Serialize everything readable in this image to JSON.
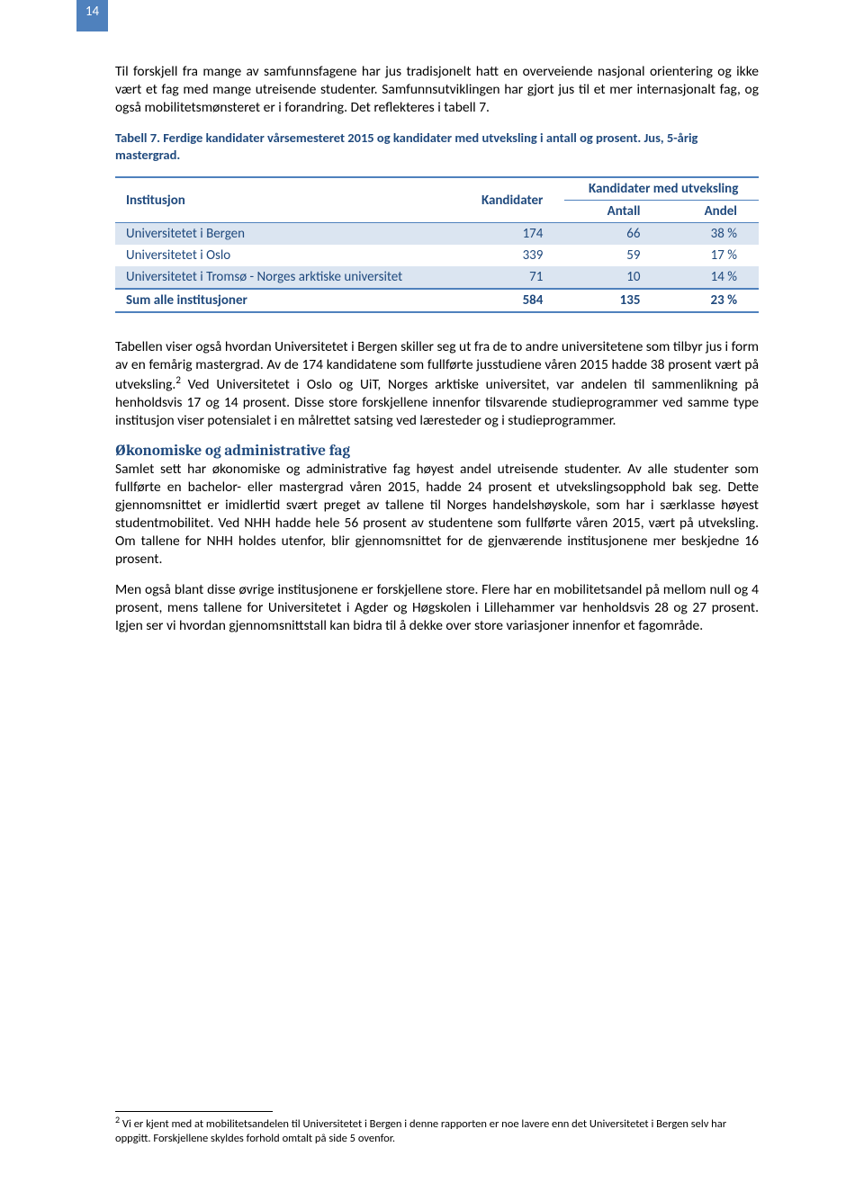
{
  "page_number": "14",
  "paragraphs": {
    "p1": "Til forskjell fra mange av samfunnsfagene har jus tradisjonelt hatt en overveiende nasjonal orientering og ikke vært et fag med mange utreisende studenter. Samfunnsutviklingen har gjort jus til et mer internasjonalt fag, og også mobilitetsmønsteret er i forandring. Det reflekteres i tabell 7.",
    "p2": "Tabellen viser også hvordan Universitetet i Bergen skiller seg ut fra de to andre universitetene som tilbyr jus i form av en femårig mastergrad. Av de 174 kandidatene som fullførte jusstudiene våren 2015 hadde 38 prosent vært på utveksling.",
    "p2b": " Ved Universitetet i Oslo og UiT, Norges arktiske universitet, var andelen til sammenlikning på henholdsvis 17 og 14 prosent. Disse store forskjellene innenfor tilsvarende studieprogrammer ved samme type institusjon viser potensialet i en målrettet satsing ved læresteder og i studieprogrammer.",
    "p3": "Samlet sett har økonomiske og administrative fag høyest andel utreisende studenter. Av alle studenter som fullførte en bachelor- eller mastergrad våren 2015, hadde 24 prosent et utvekslingsopphold bak seg. Dette gjennomsnittet er imidlertid svært preget av tallene til Norges handelshøyskole, som har i særklasse høyest studentmobilitet. Ved NHH hadde hele 56 prosent av studentene som fullførte våren 2015, vært på utveksling. Om tallene for NHH holdes utenfor, blir gjennomsnittet for de gjenværende institusjonene mer beskjedne 16 prosent.",
    "p4": "Men også blant disse øvrige institusjonene er forskjellene store. Flere har en mobilitetsandel på mellom null og 4 prosent, mens tallene for Universitetet i Agder og Høgskolen i Lillehammer var henholdsvis 28 og 27 prosent. Igjen ser vi hvordan gjennomsnittstall kan bidra til å dekke over store variasjoner innenfor et fagområde."
  },
  "table": {
    "caption": "Tabell 7. Ferdige kandidater vårsemesteret 2015 og kandidater med utveksling i antall og prosent. Jus, 5-årig mastergrad.",
    "headers": {
      "col1": "Institusjon",
      "col2": "Kandidater",
      "col3_span": "Kandidater med utveksling",
      "col3a": "Antall",
      "col3b": "Andel"
    },
    "rows": [
      {
        "name": "Universitetet i Bergen",
        "kand": "174",
        "antall": "66",
        "andel": "38 %"
      },
      {
        "name": "Universitetet i Oslo",
        "kand": "339",
        "antall": "59",
        "andel": "17 %"
      },
      {
        "name": "Universitetet i Tromsø - Norges arktiske universitet",
        "kand": "71",
        "antall": "10",
        "andel": "14 %"
      }
    ],
    "sum": {
      "name": "Sum alle institusjoner",
      "kand": "584",
      "antall": "135",
      "andel": "23 %"
    }
  },
  "section_heading": "Økonomiske og administrative fag",
  "footnote": {
    "marker": "2",
    "text": " Vi er kjent med at mobilitetsandelen til Universitetet i Bergen i denne rapporten er noe lavere enn det Universitetet i Bergen selv har oppgitt. Forskjellene skyldes forhold omtalt på side 5 ovenfor."
  }
}
